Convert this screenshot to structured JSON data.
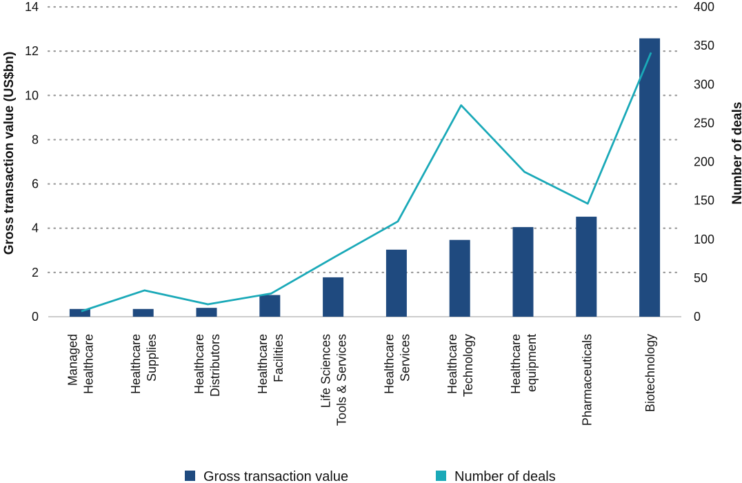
{
  "chart_data": {
    "type": "bar",
    "categories": [
      [
        "Managed",
        "Healthcare"
      ],
      [
        "Healthcare",
        "Supplies"
      ],
      [
        "Healthcare",
        "Distributors"
      ],
      [
        "Healthcare",
        "Facilities"
      ],
      [
        "Life Sciences",
        "Tools &  Services"
      ],
      [
        "Healthcare",
        "Services"
      ],
      [
        "Healthcare",
        "Technology"
      ],
      [
        "Healthcare",
        "equipment"
      ],
      [
        "Pharmaceuticals"
      ],
      [
        "Biotechnology"
      ]
    ],
    "series": [
      {
        "name": "Gross transaction value",
        "type": "bar",
        "axis": "left",
        "color": "#1f4a7f",
        "values": [
          0.35,
          0.35,
          0.4,
          0.98,
          1.78,
          3.03,
          3.47,
          4.05,
          4.52,
          12.58
        ]
      },
      {
        "name": "Number of deals",
        "type": "line",
        "axis": "right",
        "color": "#1aa9b8",
        "values": [
          7,
          34,
          16,
          30,
          77,
          123,
          273,
          187,
          146,
          341
        ]
      }
    ],
    "ylabel": "Gross transaction value (US$bn)",
    "y2label": "Number of deals",
    "ylim": [
      0,
      14
    ],
    "y2lim": [
      0,
      400
    ],
    "yticks": [
      0,
      2,
      4,
      6,
      8,
      10,
      12,
      14
    ],
    "y2ticks": [
      0,
      50,
      100,
      150,
      200,
      250,
      300,
      350,
      400
    ],
    "grid": true,
    "legend_position": "bottom"
  }
}
